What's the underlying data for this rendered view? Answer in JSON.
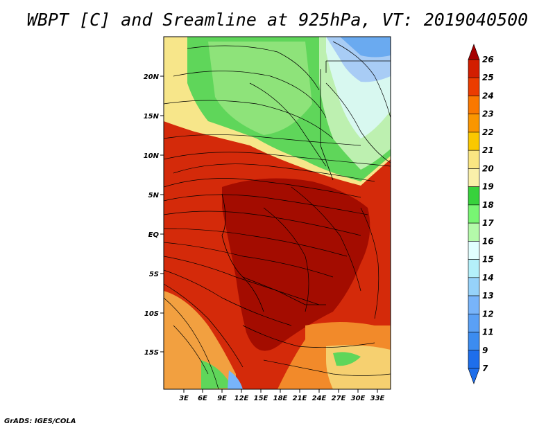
{
  "title": "WBPT [C] and Sreamline at 925hPa, VT: 2019040500",
  "credit": "GrADS: IGES/COLA",
  "map": {
    "lat_labels": [
      "20N",
      "15N",
      "10N",
      "5N",
      "EQ",
      "5S",
      "10S",
      "15S"
    ],
    "lon_labels": [
      "3E",
      "6E",
      "9E",
      "12E",
      "15E",
      "18E",
      "21E",
      "24E",
      "27E",
      "30E",
      "33E"
    ]
  },
  "colorbar": {
    "levels": [
      "7",
      "9",
      "11",
      "12",
      "13",
      "14",
      "15",
      "16",
      "17",
      "18",
      "19",
      "20",
      "21",
      "22",
      "23",
      "24",
      "25",
      "26"
    ],
    "colors": [
      "#1e6eeb",
      "#3c8cf0",
      "#5aa0f5",
      "#78b4fa",
      "#96d2fa",
      "#b4f0fa",
      "#e1ffff",
      "#b4faaa",
      "#78f573",
      "#37d23c",
      "#faf0aa",
      "#fae682",
      "#fac800",
      "#fa9600",
      "#fa7800",
      "#eb3c00",
      "#d21e00",
      "#a50000"
    ]
  }
}
